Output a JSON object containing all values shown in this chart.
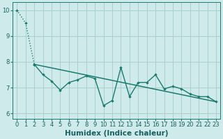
{
  "xlabel": "Humidex (Indice chaleur)",
  "background_color": "#ceeaea",
  "grid_color": "#aacfcf",
  "line_color": "#1a7a6e",
  "xlim": [
    -0.5,
    23.5
  ],
  "ylim": [
    5.8,
    10.3
  ],
  "yticks": [
    6,
    7,
    8,
    9,
    10
  ],
  "xticks": [
    0,
    1,
    2,
    3,
    4,
    5,
    6,
    7,
    8,
    9,
    10,
    11,
    12,
    13,
    14,
    15,
    16,
    17,
    18,
    19,
    20,
    21,
    22,
    23
  ],
  "steep_x": [
    0,
    1,
    2,
    3,
    4,
    5,
    6,
    7,
    8,
    9,
    10,
    11,
    12,
    13,
    14,
    15,
    16,
    17,
    18,
    19,
    20,
    21,
    22,
    23
  ],
  "steep_y": [
    10.0,
    9.5,
    7.9,
    7.5,
    7.25,
    6.9,
    7.2,
    7.3,
    7.45,
    7.35,
    6.3,
    6.5,
    7.78,
    6.65,
    7.2,
    7.2,
    7.5,
    6.95,
    7.05,
    6.95,
    6.75,
    6.65,
    6.65,
    6.45
  ],
  "solid_x": [
    2,
    3,
    4,
    5,
    6,
    7,
    8,
    9,
    10,
    11,
    12,
    13,
    14,
    15,
    16,
    17,
    18,
    19,
    20,
    21,
    22,
    23
  ],
  "solid_y": [
    7.9,
    7.5,
    7.25,
    6.9,
    7.2,
    7.3,
    7.45,
    7.35,
    6.3,
    6.5,
    7.78,
    6.65,
    7.2,
    7.2,
    7.5,
    6.95,
    7.05,
    6.95,
    6.75,
    6.65,
    6.65,
    6.45
  ],
  "trend_x": [
    2,
    23
  ],
  "trend_y": [
    7.9,
    6.45
  ],
  "font_color": "#1a5f5f",
  "tick_fontsize": 6,
  "label_fontsize": 7.5
}
